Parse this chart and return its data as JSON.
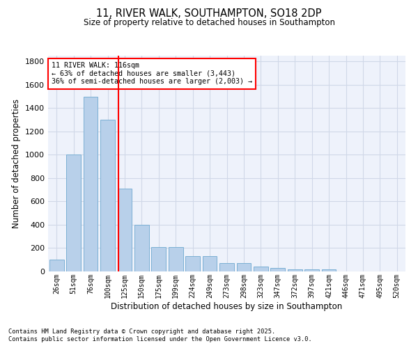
{
  "title_line1": "11, RIVER WALK, SOUTHAMPTON, SO18 2DP",
  "title_line2": "Size of property relative to detached houses in Southampton",
  "xlabel": "Distribution of detached houses by size in Southampton",
  "ylabel": "Number of detached properties",
  "categories": [
    "26sqm",
    "51sqm",
    "76sqm",
    "100sqm",
    "125sqm",
    "150sqm",
    "175sqm",
    "199sqm",
    "224sqm",
    "249sqm",
    "273sqm",
    "298sqm",
    "323sqm",
    "347sqm",
    "372sqm",
    "397sqm",
    "421sqm",
    "446sqm",
    "471sqm",
    "495sqm",
    "520sqm"
  ],
  "values": [
    100,
    1000,
    1500,
    1300,
    710,
    400,
    210,
    210,
    130,
    130,
    70,
    70,
    40,
    30,
    20,
    15,
    15,
    0,
    0,
    0,
    0
  ],
  "bar_color": "#b8d0ea",
  "bar_edge_color": "#7aafd4",
  "bg_color": "#eef2fb",
  "grid_color": "#d0d8e8",
  "vline_color": "red",
  "vline_x": 3.64,
  "annotation_text": "11 RIVER WALK: 116sqm\n← 63% of detached houses are smaller (3,443)\n36% of semi-detached houses are larger (2,003) →",
  "ylim": [
    0,
    1850
  ],
  "yticks": [
    0,
    200,
    400,
    600,
    800,
    1000,
    1200,
    1400,
    1600,
    1800
  ],
  "footer_line1": "Contains HM Land Registry data © Crown copyright and database right 2025.",
  "footer_line2": "Contains public sector information licensed under the Open Government Licence v3.0."
}
